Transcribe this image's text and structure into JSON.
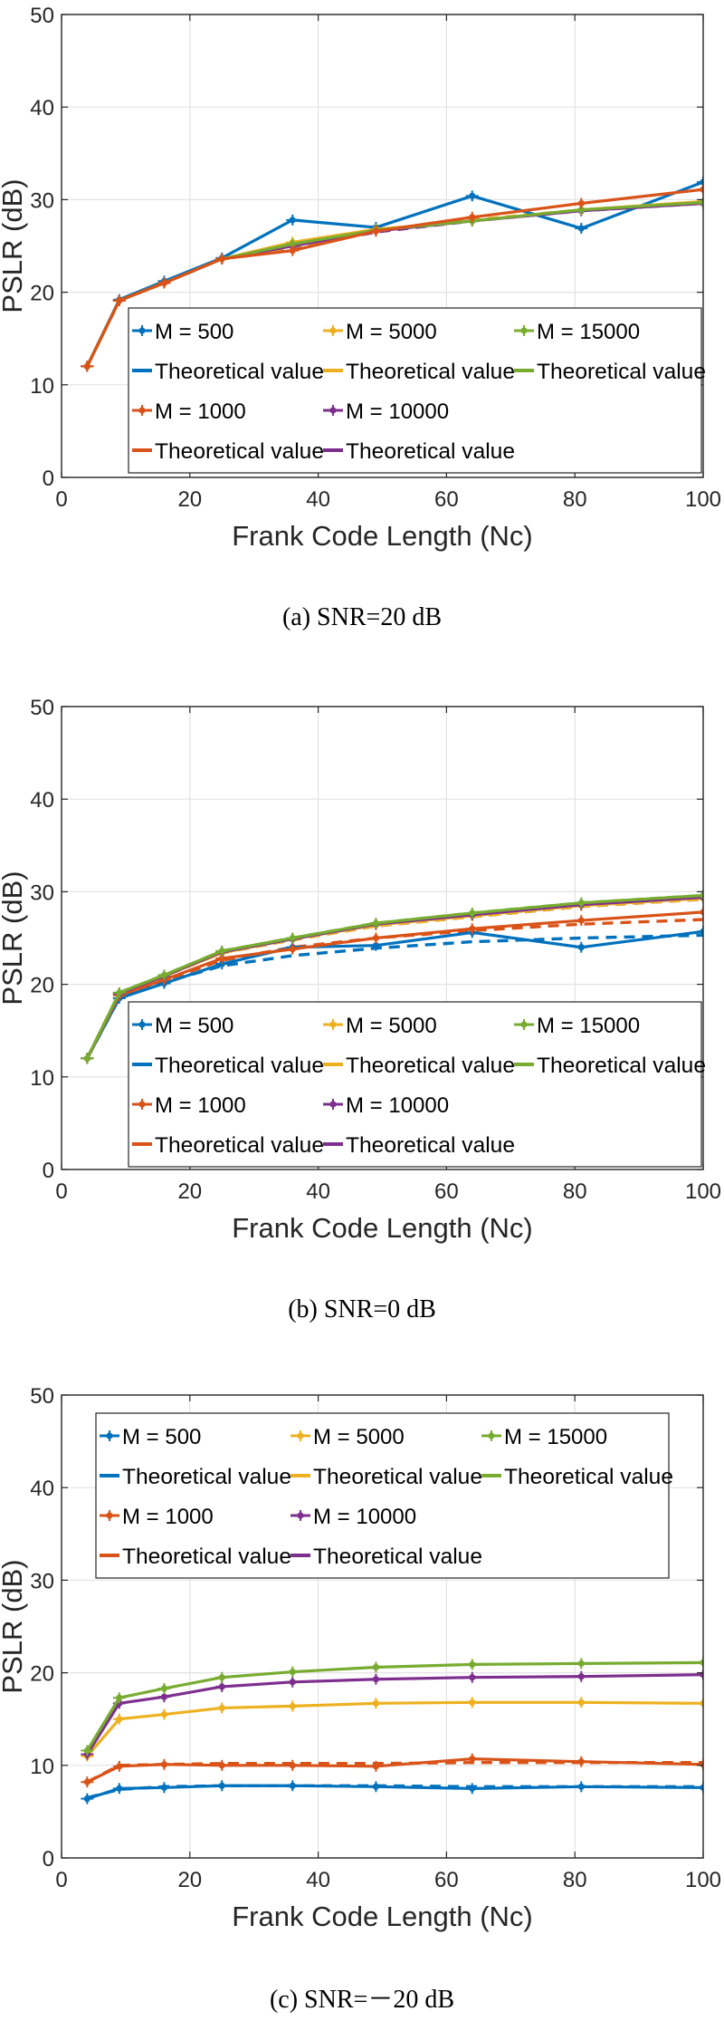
{
  "chart_data": [
    {
      "type": "line",
      "xlabel": "Frank Code Length (Nc)",
      "ylabel": "PSLR (dB)",
      "xlim": [
        0,
        100
      ],
      "ylim": [
        0,
        50
      ],
      "xticks": [
        "0",
        "20",
        "40",
        "60",
        "80",
        "100"
      ],
      "yticks": [
        "0",
        "10",
        "20",
        "30",
        "40",
        "50"
      ],
      "grid": true,
      "legend_position": "lower-right",
      "caption": "(a)  SNR=20  dB",
      "x": [
        4,
        9,
        16,
        25,
        36,
        49,
        64,
        81,
        100
      ],
      "legend": [
        {
          "label": "M = 500",
          "color": "#0072BD",
          "style": "marker"
        },
        {
          "label": "M = 5000",
          "color": "#EDB120",
          "style": "marker"
        },
        {
          "label": "M = 15000",
          "color": "#77AC30",
          "style": "marker"
        },
        {
          "label": "Theoretical value",
          "color": "#0072BD",
          "style": "line"
        },
        {
          "label": "Theoretical value",
          "color": "#EDB120",
          "style": "line"
        },
        {
          "label": "Theoretical value",
          "color": "#77AC30",
          "style": "line"
        },
        {
          "label": "M = 1000",
          "color": "#D95319",
          "style": "marker"
        },
        {
          "label": "M = 10000",
          "color": "#7E2F8E",
          "style": "marker"
        },
        null,
        {
          "label": "Theoretical value",
          "color": "#D95319",
          "style": "line"
        },
        {
          "label": "Theoretical value",
          "color": "#7E2F8E",
          "style": "line"
        },
        null
      ],
      "series": [
        {
          "color": "#7E2F8E",
          "dashed": true,
          "marker": false,
          "values": [
            12,
            19.1,
            21,
            23.6,
            24.8,
            26.5,
            27.7,
            28.8,
            29.6
          ]
        },
        {
          "color": "#EDB120",
          "dashed": true,
          "marker": false,
          "values": [
            12,
            19.1,
            21,
            23.6,
            24.9,
            26.6,
            27.8,
            28.9,
            29.7
          ]
        },
        {
          "color": "#0072BD",
          "dashed": false,
          "marker": true,
          "values": [
            12,
            19.2,
            21.2,
            23.7,
            27.8,
            27,
            30.4,
            26.9,
            31.9
          ]
        },
        {
          "color": "#EDB120",
          "dashed": false,
          "marker": true,
          "values": [
            12,
            19.1,
            21,
            23.6,
            25.4,
            26.8,
            27.7,
            28.9,
            29.8
          ]
        },
        {
          "color": "#7E2F8E",
          "dashed": false,
          "marker": true,
          "values": [
            12,
            19.1,
            21,
            23.6,
            25,
            26.6,
            27.7,
            28.8,
            29.6
          ]
        },
        {
          "color": "#77AC30",
          "dashed": false,
          "marker": true,
          "values": [
            12,
            19.1,
            21,
            23.6,
            25.2,
            26.7,
            27.7,
            28.9,
            29.7
          ]
        },
        {
          "color": "#D95319",
          "dashed": false,
          "marker": true,
          "values": [
            12,
            19.1,
            21,
            23.6,
            24.5,
            26.6,
            28.1,
            29.6,
            31.1
          ]
        }
      ]
    },
    {
      "type": "line",
      "xlabel": "Frank Code Length (Nc)",
      "ylabel": "PSLR (dB)",
      "xlim": [
        0,
        100
      ],
      "ylim": [
        0,
        50
      ],
      "xticks": [
        "0",
        "20",
        "40",
        "60",
        "80",
        "100"
      ],
      "yticks": [
        "0",
        "10",
        "20",
        "30",
        "40",
        "50"
      ],
      "grid": true,
      "legend_position": "lower-right",
      "caption": "(b)  SNR=0  dB",
      "x": [
        4,
        9,
        16,
        25,
        36,
        49,
        64,
        81,
        100
      ],
      "legend": [
        {
          "label": "M = 500",
          "color": "#0072BD",
          "style": "marker"
        },
        {
          "label": "M = 5000",
          "color": "#EDB120",
          "style": "marker"
        },
        {
          "label": "M = 15000",
          "color": "#77AC30",
          "style": "marker"
        },
        {
          "label": "Theoretical value",
          "color": "#0072BD",
          "style": "line"
        },
        {
          "label": "Theoretical value",
          "color": "#EDB120",
          "style": "line"
        },
        {
          "label": "Theoretical value",
          "color": "#77AC30",
          "style": "line"
        },
        {
          "label": "M = 1000",
          "color": "#D95319",
          "style": "marker"
        },
        {
          "label": "M = 10000",
          "color": "#7E2F8E",
          "style": "marker"
        },
        null,
        {
          "label": "Theoretical value",
          "color": "#D95319",
          "style": "line"
        },
        {
          "label": "Theoretical value",
          "color": "#7E2F8E",
          "style": "line"
        },
        null
      ],
      "series": [
        {
          "color": "#0072BD",
          "dashed": true,
          "marker": false,
          "values": [
            12,
            18.5,
            20.2,
            22,
            23.1,
            23.9,
            24.6,
            25,
            25.3
          ]
        },
        {
          "color": "#D95319",
          "dashed": true,
          "marker": false,
          "values": [
            12,
            18.7,
            20.4,
            22.6,
            24,
            25,
            25.8,
            26.5,
            27
          ]
        },
        {
          "color": "#7E2F8E",
          "dashed": true,
          "marker": false,
          "values": [
            12,
            19,
            20.9,
            23.4,
            24.8,
            26.3,
            27.3,
            28.4,
            29.2
          ]
        },
        {
          "color": "#EDB120",
          "dashed": true,
          "marker": false,
          "values": [
            12,
            19,
            20.9,
            23.4,
            24.8,
            26.3,
            27.3,
            28.4,
            29.2
          ]
        },
        {
          "color": "#77AC30",
          "dashed": true,
          "marker": false,
          "values": [
            12,
            19.1,
            21,
            23.6,
            25,
            26.6,
            27.7,
            28.8,
            29.6
          ]
        },
        {
          "color": "#0072BD",
          "dashed": false,
          "marker": true,
          "values": [
            12,
            18.5,
            20.1,
            22.2,
            24,
            24.2,
            25.6,
            24,
            25.7
          ]
        },
        {
          "color": "#D95319",
          "dashed": false,
          "marker": true,
          "values": [
            12,
            18.8,
            20.5,
            22.8,
            23.8,
            25,
            26,
            26.9,
            27.8
          ]
        },
        {
          "color": "#EDB120",
          "dashed": false,
          "marker": true,
          "values": [
            12,
            19,
            20.9,
            23.4,
            24.9,
            26.4,
            27.4,
            28.5,
            29.3
          ]
        },
        {
          "color": "#7E2F8E",
          "dashed": false,
          "marker": true,
          "values": [
            12,
            19,
            20.9,
            23.5,
            24.9,
            26.5,
            27.5,
            28.6,
            29.4
          ]
        },
        {
          "color": "#77AC30",
          "dashed": false,
          "marker": true,
          "values": [
            12,
            19.1,
            21,
            23.6,
            25,
            26.6,
            27.7,
            28.8,
            29.6
          ]
        }
      ]
    },
    {
      "type": "line",
      "xlabel": "Frank Code Length (Nc)",
      "ylabel": "PSLR (dB)",
      "xlim": [
        0,
        100
      ],
      "ylim": [
        0,
        50
      ],
      "xticks": [
        "0",
        "20",
        "40",
        "60",
        "80",
        "100"
      ],
      "yticks": [
        "0",
        "10",
        "20",
        "30",
        "40",
        "50"
      ],
      "grid": true,
      "legend_position": "top-right",
      "caption": "(c)  SNR=－20  dB",
      "x": [
        4,
        9,
        16,
        25,
        36,
        49,
        64,
        81,
        100
      ],
      "legend": [
        {
          "label": "M = 500",
          "color": "#0072BD",
          "style": "marker"
        },
        {
          "label": "M = 5000",
          "color": "#EDB120",
          "style": "marker"
        },
        {
          "label": "M = 15000",
          "color": "#77AC30",
          "style": "marker"
        },
        {
          "label": "Theoretical value",
          "color": "#0072BD",
          "style": "line"
        },
        {
          "label": "Theoretical value",
          "color": "#EDB120",
          "style": "line"
        },
        {
          "label": "Theoretical value",
          "color": "#77AC30",
          "style": "line"
        },
        {
          "label": "M = 1000",
          "color": "#D95319",
          "style": "marker"
        },
        {
          "label": "M = 10000",
          "color": "#7E2F8E",
          "style": "marker"
        },
        null,
        {
          "label": "Theoretical value",
          "color": "#D95319",
          "style": "line"
        },
        {
          "label": "Theoretical value",
          "color": "#7E2F8E",
          "style": "line"
        },
        null
      ],
      "series": [
        {
          "color": "#0072BD",
          "dashed": true,
          "marker": false,
          "values": [
            6.5,
            7.4,
            7.7,
            7.8,
            7.8,
            7.8,
            7.7,
            7.7,
            7.7
          ]
        },
        {
          "color": "#D95319",
          "dashed": true,
          "marker": false,
          "values": [
            8.2,
            10,
            10.1,
            10.2,
            10.2,
            10.2,
            10.3,
            10.3,
            10.3
          ]
        },
        {
          "color": "#0072BD",
          "dashed": false,
          "marker": true,
          "values": [
            6.4,
            7.5,
            7.6,
            7.8,
            7.8,
            7.7,
            7.5,
            7.7,
            7.6
          ]
        },
        {
          "color": "#D95319",
          "dashed": false,
          "marker": true,
          "values": [
            8.2,
            9.9,
            10.1,
            10,
            10,
            9.9,
            10.7,
            10.4,
            10.1
          ]
        },
        {
          "color": "#EDB120",
          "dashed": false,
          "marker": true,
          "values": [
            11,
            15,
            15.5,
            16.2,
            16.4,
            16.7,
            16.8,
            16.8,
            16.7
          ]
        },
        {
          "color": "#7E2F8E",
          "dashed": false,
          "marker": true,
          "values": [
            11.2,
            16.7,
            17.4,
            18.5,
            19,
            19.3,
            19.5,
            19.6,
            19.8
          ]
        },
        {
          "color": "#77AC30",
          "dashed": false,
          "marker": true,
          "values": [
            11.6,
            17.3,
            18.3,
            19.5,
            20.1,
            20.6,
            20.9,
            21,
            21.1
          ]
        }
      ]
    }
  ]
}
